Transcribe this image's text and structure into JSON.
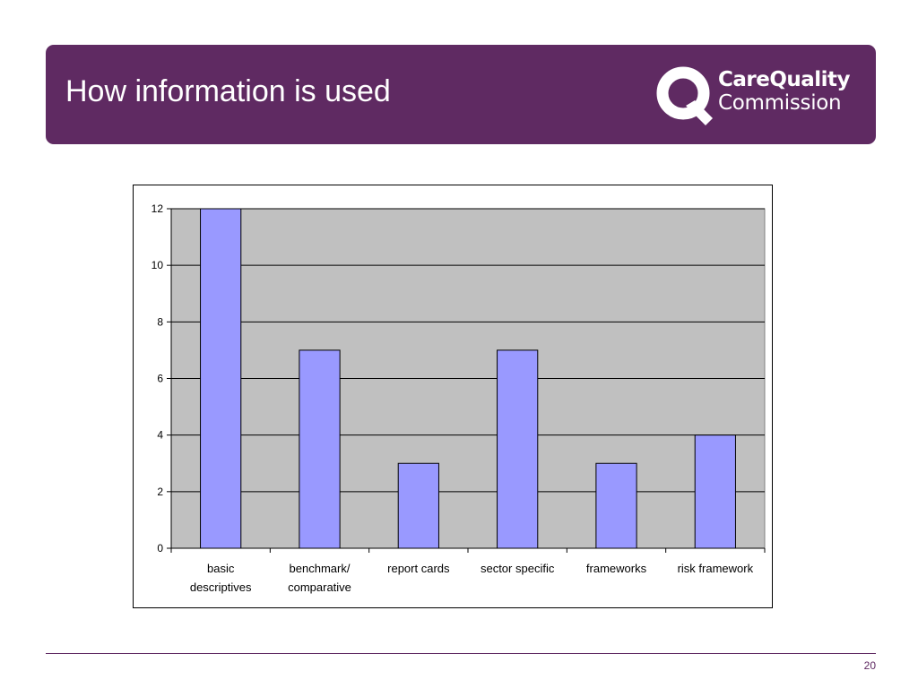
{
  "slide": {
    "title": "How information is used",
    "page_number": "20"
  },
  "logo": {
    "line1": "CareQuality",
    "line2": "Commission"
  },
  "colors": {
    "brand_purple": "#5f2a62",
    "bar_fill": "#9999ff",
    "plot_background": "#c0c0c0",
    "axis": "#000000"
  },
  "chart_data": {
    "type": "bar",
    "categories": [
      [
        "basic",
        "descriptives"
      ],
      [
        "benchmark/",
        "comparative"
      ],
      [
        "report cards"
      ],
      [
        "sector specific"
      ],
      [
        "frameworks"
      ],
      [
        "risk framework"
      ]
    ],
    "values": [
      12,
      7,
      3,
      7,
      3,
      4
    ],
    "ylim": [
      0,
      12
    ],
    "yticks": [
      0,
      2,
      4,
      6,
      8,
      10,
      12
    ],
    "grid": true,
    "legend": "none"
  }
}
